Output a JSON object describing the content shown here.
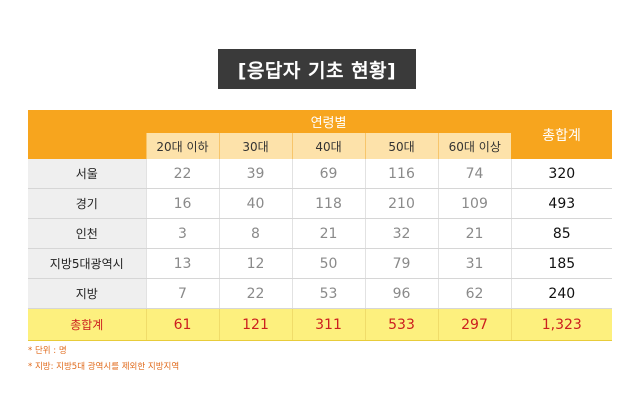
{
  "title": "[응답자 기초 현황]",
  "table": {
    "group_header": "연령별",
    "total_header": "총합계",
    "age_columns": [
      "20대 이하",
      "30대",
      "40대",
      "50대",
      "60대 이상"
    ],
    "rows": [
      {
        "region": "서울",
        "values": [
          "22",
          "39",
          "69",
          "116",
          "74"
        ],
        "total": "320"
      },
      {
        "region": "경기",
        "values": [
          "16",
          "40",
          "118",
          "210",
          "109"
        ],
        "total": "493"
      },
      {
        "region": "인천",
        "values": [
          "3",
          "8",
          "21",
          "32",
          "21"
        ],
        "total": "85"
      },
      {
        "region": "지방5대광역시",
        "values": [
          "13",
          "12",
          "50",
          "79",
          "31"
        ],
        "total": "185"
      },
      {
        "region": "지방",
        "values": [
          "7",
          "22",
          "53",
          "96",
          "62"
        ],
        "total": "240"
      }
    ],
    "sum_row": {
      "label": "총합계",
      "values": [
        "61",
        "121",
        "311",
        "533",
        "297"
      ],
      "total": "1,323"
    }
  },
  "notes": [
    "* 단위 : 명",
    "* 지방: 지방5대 광역시를 제외한 지방지역"
  ],
  "colors": {
    "header_orange": "#f7a51e",
    "sum_yellow": "#fdf07e",
    "sum_text_red": "#cc1f1f",
    "note_orange": "#e06a1b"
  }
}
